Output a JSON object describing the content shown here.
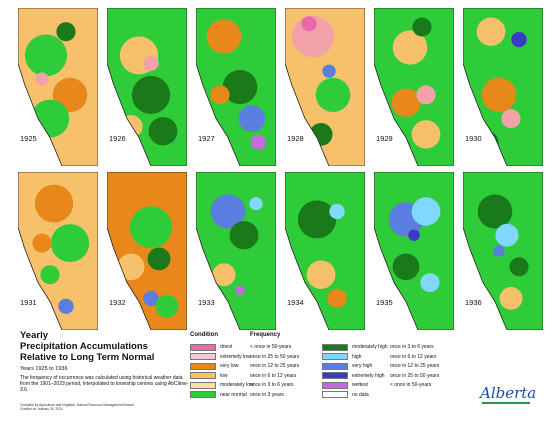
{
  "maps": [
    {
      "year": "1925",
      "base": "#f7c16b",
      "blobs": [
        [
          "#2fcc3a",
          0.35,
          0.3,
          0.22
        ],
        [
          "#e8881a",
          0.65,
          0.55,
          0.18
        ],
        [
          "#2fcc3a",
          0.4,
          0.7,
          0.2
        ],
        [
          "#f3a3a8",
          0.3,
          0.45,
          0.07
        ],
        [
          "#1a7a1a",
          0.6,
          0.15,
          0.1
        ]
      ]
    },
    {
      "year": "1926",
      "base": "#2fcc3a",
      "blobs": [
        [
          "#f7c16b",
          0.4,
          0.3,
          0.2
        ],
        [
          "#1a7a1a",
          0.55,
          0.55,
          0.2
        ],
        [
          "#f3a3a8",
          0.55,
          0.35,
          0.08
        ],
        [
          "#1a7a1a",
          0.7,
          0.78,
          0.15
        ],
        [
          "#f7c16b",
          0.3,
          0.75,
          0.12
        ]
      ]
    },
    {
      "year": "1927",
      "base": "#2fcc3a",
      "blobs": [
        [
          "#e8881a",
          0.35,
          0.18,
          0.18
        ],
        [
          "#1a7a1a",
          0.55,
          0.5,
          0.18
        ],
        [
          "#5a7ee0",
          0.7,
          0.7,
          0.14
        ],
        [
          "#c46be0",
          0.78,
          0.85,
          0.08
        ],
        [
          "#e8881a",
          0.3,
          0.55,
          0.1
        ]
      ]
    },
    {
      "year": "1928",
      "base": "#f7c16b",
      "blobs": [
        [
          "#f3a3a8",
          0.35,
          0.18,
          0.22
        ],
        [
          "#e96aa8",
          0.3,
          0.1,
          0.08
        ],
        [
          "#5a7ee0",
          0.55,
          0.4,
          0.07
        ],
        [
          "#2fcc3a",
          0.6,
          0.55,
          0.18
        ],
        [
          "#1a7a1a",
          0.45,
          0.8,
          0.12
        ]
      ]
    },
    {
      "year": "1929",
      "base": "#2fcc3a",
      "blobs": [
        [
          "#f7c16b",
          0.45,
          0.25,
          0.18
        ],
        [
          "#e8881a",
          0.4,
          0.6,
          0.15
        ],
        [
          "#f3a3a8",
          0.65,
          0.55,
          0.1
        ],
        [
          "#1a7a1a",
          0.6,
          0.12,
          0.1
        ],
        [
          "#f7c16b",
          0.65,
          0.8,
          0.15
        ]
      ]
    },
    {
      "year": "1930",
      "base": "#2fcc3a",
      "blobs": [
        [
          "#f7c16b",
          0.35,
          0.15,
          0.15
        ],
        [
          "#3a3ac8",
          0.7,
          0.2,
          0.08
        ],
        [
          "#e8881a",
          0.45,
          0.55,
          0.18
        ],
        [
          "#f3a3a8",
          0.6,
          0.7,
          0.1
        ],
        [
          "#1a7a1a",
          0.3,
          0.85,
          0.12
        ]
      ]
    },
    {
      "year": "1931",
      "base": "#f7c16b",
      "blobs": [
        [
          "#e8881a",
          0.45,
          0.2,
          0.2
        ],
        [
          "#2fcc3a",
          0.65,
          0.45,
          0.2
        ],
        [
          "#5a7ee0",
          0.6,
          0.85,
          0.08
        ],
        [
          "#2fcc3a",
          0.4,
          0.65,
          0.1
        ],
        [
          "#e8881a",
          0.3,
          0.45,
          0.1
        ]
      ]
    },
    {
      "year": "1932",
      "base": "#e8881a",
      "blobs": [
        [
          "#2fcc3a",
          0.55,
          0.35,
          0.22
        ],
        [
          "#1a7a1a",
          0.65,
          0.55,
          0.12
        ],
        [
          "#f7c16b",
          0.3,
          0.6,
          0.14
        ],
        [
          "#5a7ee0",
          0.55,
          0.8,
          0.08
        ],
        [
          "#2fcc3a",
          0.75,
          0.85,
          0.12
        ]
      ]
    },
    {
      "year": "1933",
      "base": "#2fcc3a",
      "blobs": [
        [
          "#5a7ee0",
          0.4,
          0.25,
          0.18
        ],
        [
          "#1a7a1a",
          0.6,
          0.4,
          0.15
        ],
        [
          "#80d8ff",
          0.75,
          0.2,
          0.07
        ],
        [
          "#f7c16b",
          0.35,
          0.65,
          0.12
        ],
        [
          "#c46be0",
          0.55,
          0.75,
          0.05
        ]
      ]
    },
    {
      "year": "1934",
      "base": "#2fcc3a",
      "blobs": [
        [
          "#1a7a1a",
          0.4,
          0.3,
          0.2
        ],
        [
          "#80d8ff",
          0.65,
          0.25,
          0.08
        ],
        [
          "#f7c16b",
          0.45,
          0.65,
          0.15
        ],
        [
          "#e8881a",
          0.65,
          0.8,
          0.1
        ],
        [
          "#1a7a1a",
          0.3,
          0.85,
          0.1
        ]
      ]
    },
    {
      "year": "1935",
      "base": "#2fcc3a",
      "blobs": [
        [
          "#5a7ee0",
          0.4,
          0.3,
          0.18
        ],
        [
          "#80d8ff",
          0.65,
          0.25,
          0.15
        ],
        [
          "#3a3ac8",
          0.5,
          0.4,
          0.06
        ],
        [
          "#1a7a1a",
          0.4,
          0.6,
          0.14
        ],
        [
          "#80d8ff",
          0.7,
          0.7,
          0.1
        ]
      ]
    },
    {
      "year": "1936",
      "base": "#2fcc3a",
      "blobs": [
        [
          "#1a7a1a",
          0.4,
          0.25,
          0.18
        ],
        [
          "#80d8ff",
          0.55,
          0.4,
          0.12
        ],
        [
          "#5a7ee0",
          0.45,
          0.5,
          0.06
        ],
        [
          "#f7c16b",
          0.6,
          0.8,
          0.12
        ],
        [
          "#1a7a1a",
          0.7,
          0.6,
          0.1
        ]
      ]
    }
  ],
  "title": {
    "line1": "Yearly",
    "line2": "Precipitation Accumulations",
    "line3": "Relative to Long Term Normal",
    "years": "Years 1925 to 1936",
    "desc": "The frequency of occurrence was calculated using historical weather data from the 1901–2023 period, interpolated to township centres using AbClime-3.6."
  },
  "credit": {
    "line1": "Compiled by Agriculture and Irrigation, Natural Resource Management Branch",
    "line2": "Created on January 26, 2024"
  },
  "legend": {
    "condition_head": "Condition",
    "frequency_head": "Frequency",
    "left": [
      {
        "label": "driest",
        "color": "#e96aa8",
        "freq": "< once in 50-years"
      },
      {
        "label": "extremely low",
        "color": "#f7c9d4",
        "freq": "once in 25 to 50 years"
      },
      {
        "label": "very low",
        "color": "#e8881a",
        "freq": "once in 12 to 25 years"
      },
      {
        "label": "low",
        "color": "#f7c16b",
        "freq": "once in 6 to 12 years"
      },
      {
        "label": "moderately low",
        "color": "#fbe0a6",
        "freq": "once in 3 to 6 years"
      },
      {
        "label": "near normal",
        "color": "#2fcc3a",
        "freq": "once in 3 years"
      }
    ],
    "right": [
      {
        "label": "moderately high",
        "color": "#1a7a1a",
        "freq": "once in 3 to 6 years"
      },
      {
        "label": "high",
        "color": "#80d8ff",
        "freq": "once in 6 to 12 years"
      },
      {
        "label": "very high",
        "color": "#5a7ee0",
        "freq": "once in 12 to 25 years"
      },
      {
        "label": "extremely high",
        "color": "#3a3ac8",
        "freq": "once in 25 to 50 years"
      },
      {
        "label": "wettest",
        "color": "#c46be0",
        "freq": "< once in 50-years"
      },
      {
        "label": "no data",
        "color": "#ffffff",
        "freq": ""
      }
    ]
  },
  "logo": "Alberta"
}
